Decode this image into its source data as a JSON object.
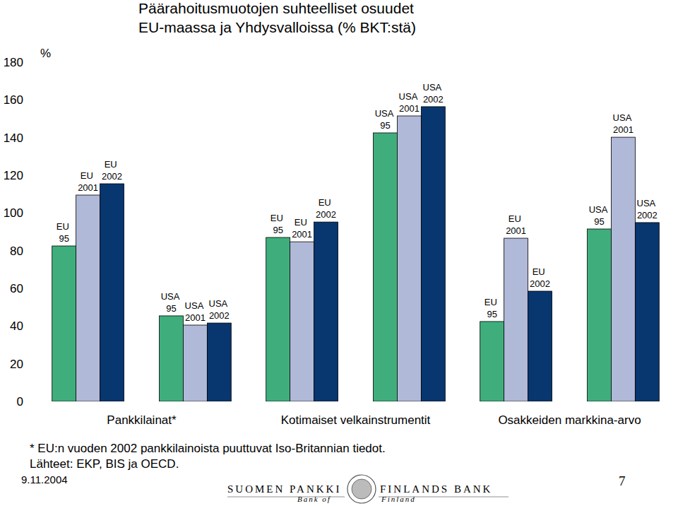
{
  "chart_data": {
    "type": "bar",
    "title": "Päärahoitusmuotojen suhteelliset osuudet",
    "subtitle": "EU-maassa ja Yhdysvalloissa (% BKT:stä)",
    "y_label": "%",
    "categories": [
      "Pankkilainat*",
      "Kotimaiset velkainstrumentit",
      "Osakkeiden markkina-arvo"
    ],
    "series": [
      {
        "name": "EU 95",
        "color": "#3fae7c",
        "values": [
          82.5,
          87,
          42.4
        ]
      },
      {
        "name": "EU 2001",
        "color": "#b1b9d9",
        "values": [
          109.5,
          84.7,
          86.6
        ]
      },
      {
        "name": "EU 2002",
        "color": "#08366f",
        "values": [
          115.5,
          95.2,
          58.5
        ]
      },
      {
        "name": "USA 95",
        "color": "#3fae7c",
        "values": [
          45.4,
          142.5,
          91.5
        ]
      },
      {
        "name": "USA 2001",
        "color": "#b1b9d9",
        "values": [
          40.5,
          151.5,
          140.2
        ]
      },
      {
        "name": "USA 2002",
        "color": "#08366f",
        "values": [
          41.6,
          156.4,
          94.9
        ]
      }
    ],
    "ylim": [
      0,
      180
    ],
    "yticks": [
      0,
      20,
      40,
      60,
      80,
      100,
      120,
      140,
      160,
      180
    ],
    "grid": false,
    "annotations": [
      "* EU:n vuoden 2002 pankkilainoista puuttuvat Iso-Britannian tiedot.",
      "Lähteet: EKP, BIS ja OECD."
    ]
  },
  "footer": {
    "date": "9.11.2004",
    "page": "7",
    "brand_fi": "SUOMEN PANKKI",
    "brand_sv": "FINLANDS BANK",
    "brand_en": [
      "Bank of",
      "Finland"
    ]
  }
}
